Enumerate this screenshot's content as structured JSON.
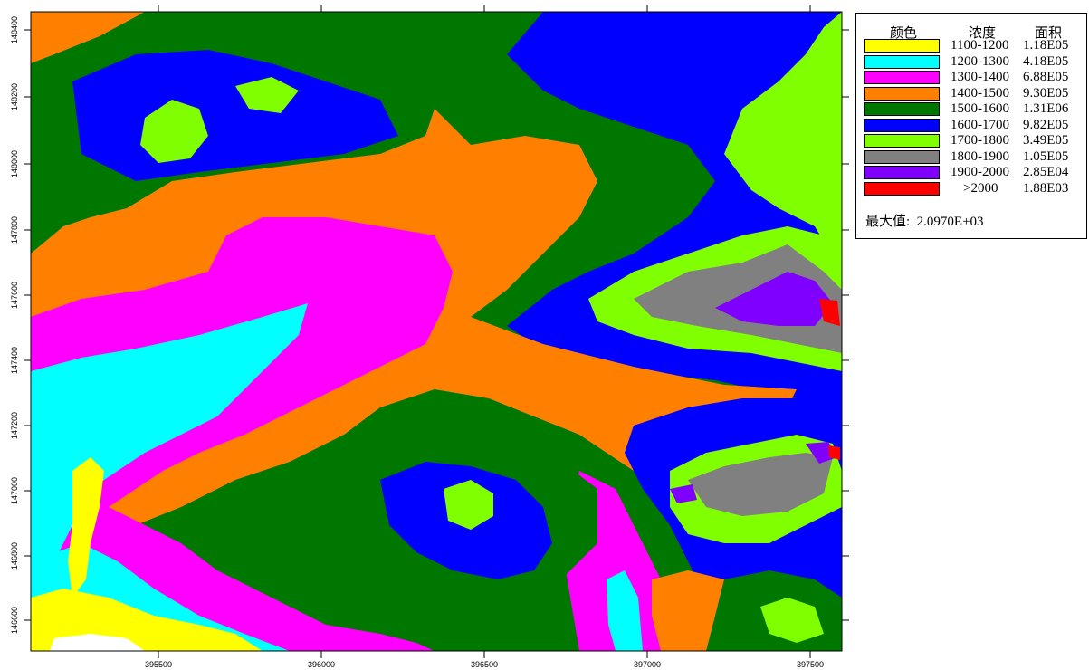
{
  "map": {
    "x_ticks": [
      "395500",
      "396000",
      "396500",
      "397000",
      "397500"
    ],
    "y_ticks": [
      "148400",
      "148200",
      "148000",
      "147800",
      "147600",
      "147400",
      "147200",
      "147000",
      "146800",
      "146600"
    ],
    "colors": {
      "yellow": "#ffff00",
      "cyan": "#00ffff",
      "magenta": "#ff00ff",
      "orange": "#ff8000",
      "dark_green": "#007800",
      "blue": "#0000ff",
      "light_green": "#80ff00",
      "gray": "#808080",
      "purple": "#8000ff",
      "red": "#ff0000"
    }
  },
  "legend": {
    "header_color": "颜色",
    "header_concentration": "浓度",
    "header_area": "面积",
    "items": [
      {
        "range": "1100-1200",
        "area": "1.18E05",
        "color": "#ffff00"
      },
      {
        "range": "1200-1300",
        "area": "4.18E05",
        "color": "#00ffff"
      },
      {
        "range": "1300-1400",
        "area": "6.88E05",
        "color": "#ff00ff"
      },
      {
        "range": "1400-1500",
        "area": "9.30E05",
        "color": "#ff8000"
      },
      {
        "range": "1500-1600",
        "area": "1.31E06",
        "color": "#007800"
      },
      {
        "range": "1600-1700",
        "area": "9.82E05",
        "color": "#0000ff"
      },
      {
        "range": "1700-1800",
        "area": "3.49E05",
        "color": "#80ff00"
      },
      {
        "range": "1800-1900",
        "area": "1.05E05",
        "color": "#808080"
      },
      {
        "range": "1900-2000",
        "area": "2.85E04",
        "color": "#8000ff"
      },
      {
        "range": ">2000",
        "area": "1.88E03",
        "color": "#ff0000"
      }
    ],
    "max_label": "最大值:",
    "max_value": "2.0970E+03"
  }
}
